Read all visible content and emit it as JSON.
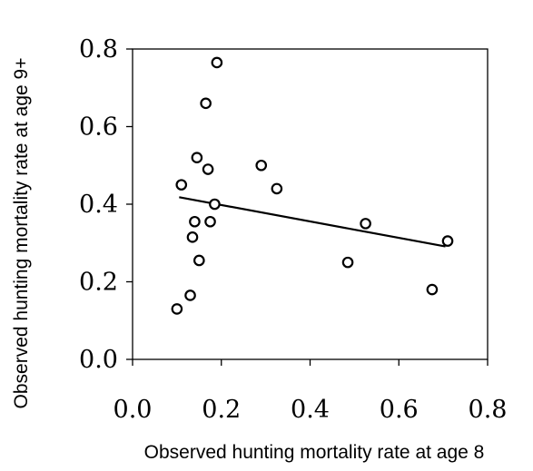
{
  "chart_data": {
    "type": "scatter",
    "title": "",
    "xlabel": "Observed hunting mortality rate at age 8",
    "ylabel": "Observed hunting mortality rate at age 9+",
    "xlim": [
      0,
      0.8
    ],
    "ylim": [
      0,
      0.8
    ],
    "x_ticks": [
      "0.0",
      "0.2",
      "0.4",
      "0.6",
      "0.8"
    ],
    "y_ticks": [
      "0.0",
      "0.2",
      "0.4",
      "0.6",
      "0.8"
    ],
    "grid": false,
    "legend": "none",
    "marker": "open-circle",
    "points": [
      {
        "x": 0.1,
        "y": 0.13
      },
      {
        "x": 0.11,
        "y": 0.45
      },
      {
        "x": 0.13,
        "y": 0.165
      },
      {
        "x": 0.135,
        "y": 0.315
      },
      {
        "x": 0.14,
        "y": 0.355
      },
      {
        "x": 0.145,
        "y": 0.52
      },
      {
        "x": 0.15,
        "y": 0.255
      },
      {
        "x": 0.165,
        "y": 0.66
      },
      {
        "x": 0.17,
        "y": 0.49
      },
      {
        "x": 0.175,
        "y": 0.355
      },
      {
        "x": 0.185,
        "y": 0.4
      },
      {
        "x": 0.19,
        "y": 0.765
      },
      {
        "x": 0.29,
        "y": 0.5
      },
      {
        "x": 0.325,
        "y": 0.44
      },
      {
        "x": 0.485,
        "y": 0.25
      },
      {
        "x": 0.525,
        "y": 0.35
      },
      {
        "x": 0.675,
        "y": 0.18
      },
      {
        "x": 0.71,
        "y": 0.305
      }
    ],
    "trendline": {
      "x": [
        0.105,
        0.705
      ],
      "y": [
        0.418,
        0.291
      ]
    }
  }
}
